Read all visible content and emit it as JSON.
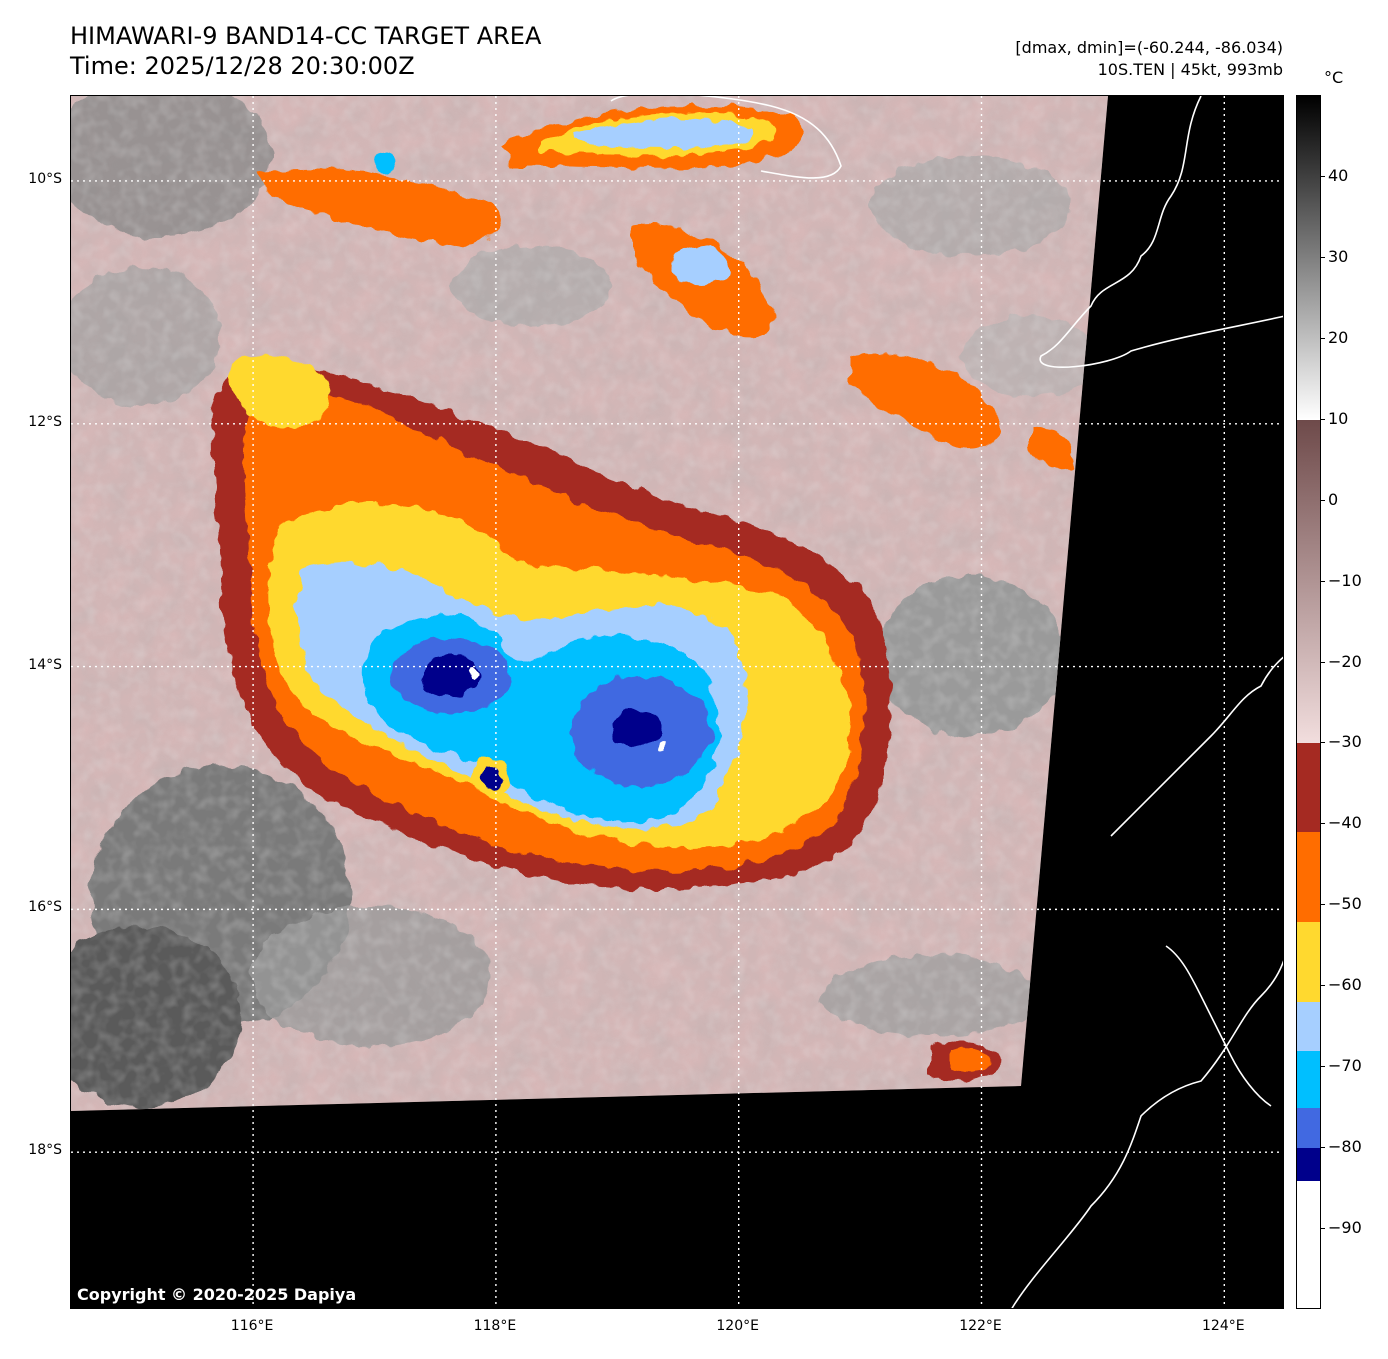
{
  "header": {
    "title": "HIMAWARI-9 BAND14-CC TARGET AREA",
    "time": "Time: 2025/12/28 20:30:00Z",
    "range": "[dmax, dmin]=(-60.244, -86.034)",
    "storm": "10S.TEN | 45kt, 993mb"
  },
  "map": {
    "lat_labels": [
      "10°S",
      "12°S",
      "14°S",
      "16°S",
      "18°S"
    ],
    "lon_labels": [
      "116°E",
      "118°E",
      "120°E",
      "122°E",
      "124°E"
    ],
    "lat_values": [
      -10,
      -12,
      -14,
      -16,
      -18
    ],
    "lon_values": [
      116,
      118,
      120,
      122,
      124
    ],
    "lon_range": [
      114.5,
      124.5
    ],
    "lat_range": [
      -9.3,
      -19.3
    ],
    "copyright": "Copyright © 2020-2025 Dapiya"
  },
  "colorbar": {
    "unit": "°C",
    "ticks": [
      "40",
      "30",
      "20",
      "10",
      "0",
      "−10",
      "−20",
      "−30",
      "−40",
      "−50",
      "−60",
      "−70",
      "−80",
      "−90"
    ],
    "tick_values": [
      40,
      30,
      20,
      10,
      0,
      -10,
      -20,
      -30,
      -40,
      -50,
      -60,
      -70,
      -80,
      -90
    ],
    "range": [
      -100,
      50
    ],
    "segments": [
      {
        "from": 50,
        "to": 10,
        "color": "gradient-gray"
      },
      {
        "from": 10,
        "to": -30,
        "color": "gradient-brown"
      },
      {
        "from": -30,
        "to": -41,
        "color": "#a52a22"
      },
      {
        "from": -41,
        "to": -52,
        "color": "#ff6d00"
      },
      {
        "from": -52,
        "to": -62,
        "color": "#ffd92f"
      },
      {
        "from": -62,
        "to": -68,
        "color": "#a6cfff"
      },
      {
        "from": -68,
        "to": -75,
        "color": "#00bfff"
      },
      {
        "from": -75,
        "to": -80,
        "color": "#4169e1"
      },
      {
        "from": -80,
        "to": -84,
        "color": "#00008b"
      },
      {
        "from": -84,
        "to": -100,
        "color": "#ffffff"
      }
    ]
  }
}
